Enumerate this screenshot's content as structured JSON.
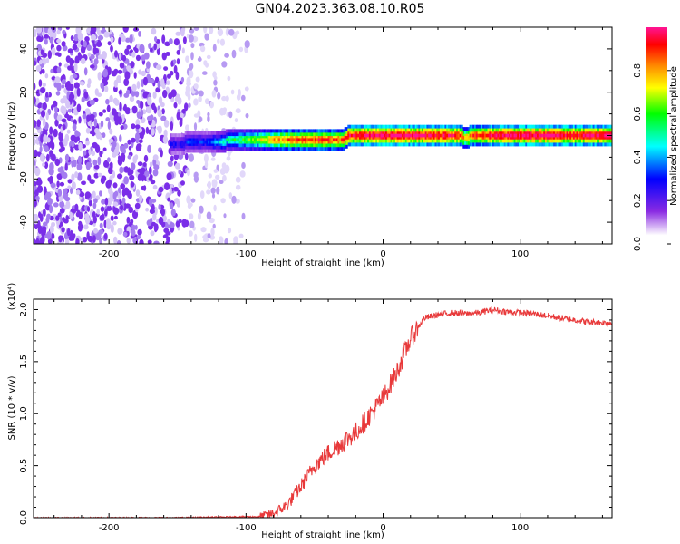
{
  "title": "GN04.2023.363.08.10.R05",
  "chart_data": [
    {
      "type": "heatmap",
      "title": "",
      "xlabel": "Height of straight line (km)",
      "ylabel": "Frequency (Hz)",
      "xlim": [
        -255,
        167
      ],
      "ylim": [
        -50,
        50
      ],
      "xticks": [
        -200,
        -100,
        0,
        100
      ],
      "yticks": [
        -40,
        -20,
        0,
        20,
        40
      ],
      "grid": false,
      "colorbar": {
        "label": "Normalized spectral amplitude",
        "range": [
          0.0,
          1.0
        ],
        "ticks": [
          0.0,
          0.2,
          0.4,
          0.6,
          0.8
        ],
        "colormap": [
          "#ffffff",
          "#8a2be2",
          "#0000ff",
          "#00ffff",
          "#00ff00",
          "#ffff00",
          "#ff8c00",
          "#ff0000",
          "#ff1493"
        ]
      },
      "noise_region": {
        "x_range": [
          -255,
          -95
        ],
        "amplitude": 0.1
      },
      "signal_track": {
        "x": [
          -155,
          -150,
          -140,
          -130,
          -120,
          -110,
          -100,
          -90,
          -80,
          -70,
          -50,
          -30,
          -25,
          -20,
          0,
          20,
          40,
          55,
          60,
          65,
          80,
          100,
          120,
          140,
          167
        ],
        "frequency_hz": [
          -4,
          -4,
          -3,
          -3,
          -3,
          -2,
          -2,
          -2,
          -2,
          -2,
          -2,
          -2,
          0,
          0,
          0,
          0,
          0,
          0,
          -1,
          0,
          0,
          0,
          0,
          0,
          0
        ],
        "amplitude": [
          0.25,
          0.2,
          0.3,
          0.25,
          0.35,
          0.45,
          0.5,
          0.6,
          0.7,
          0.8,
          0.85,
          0.8,
          0.9,
          0.95,
          1.0,
          1.0,
          0.95,
          0.9,
          0.7,
          0.85,
          0.95,
          1.0,
          1.0,
          0.95,
          1.0
        ]
      }
    },
    {
      "type": "line",
      "title": "",
      "xlabel": "Height of straight line (km)",
      "ylabel": "SNR (10 * v/v)",
      "y_multiplier": "(x10⁴)",
      "xlim": [
        -255,
        167
      ],
      "ylim": [
        0,
        2.1
      ],
      "xticks": [
        -200,
        -100,
        0,
        100
      ],
      "yticks": [
        0.0,
        0.5,
        1.0,
        1.5,
        2.0
      ],
      "grid": false,
      "line_color": "#e8393a",
      "series": [
        {
          "x": [
            -255,
            -200,
            -150,
            -100,
            -90,
            -80,
            -70,
            -60,
            -50,
            -40,
            -30,
            -20,
            -10,
            0,
            10,
            20,
            30,
            40,
            50,
            60,
            70,
            80,
            90,
            100,
            110,
            120,
            130,
            140,
            150,
            167
          ],
          "values": [
            0.0,
            0.0,
            0.0,
            0.01,
            0.01,
            0.04,
            0.12,
            0.3,
            0.5,
            0.62,
            0.72,
            0.82,
            0.98,
            1.15,
            1.4,
            1.72,
            1.92,
            1.95,
            1.97,
            1.96,
            1.97,
            2.0,
            1.98,
            1.97,
            1.96,
            1.94,
            1.92,
            1.9,
            1.88,
            1.87
          ]
        }
      ]
    }
  ]
}
